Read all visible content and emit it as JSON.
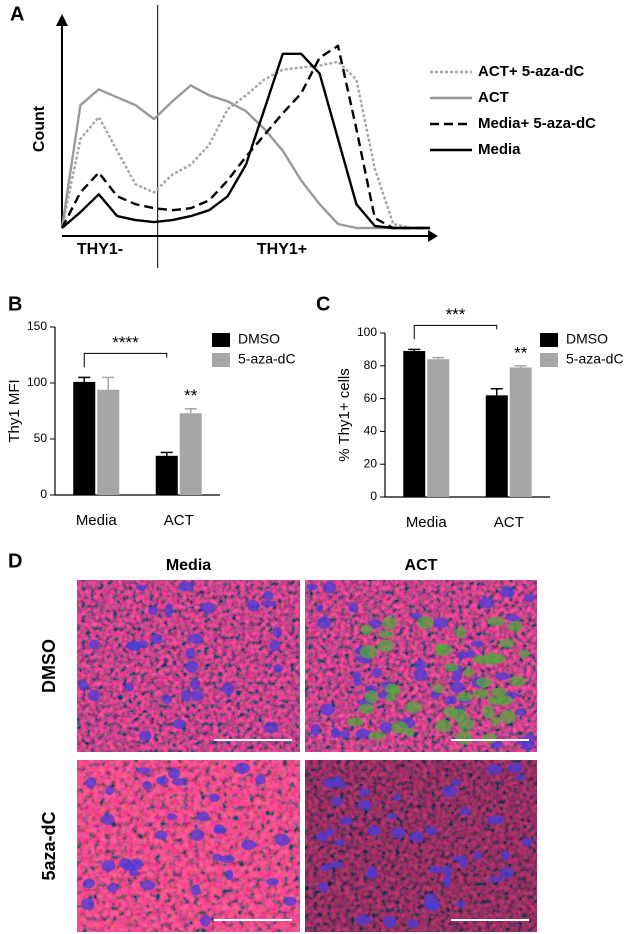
{
  "chart_data": [
    {
      "panel": "A",
      "type": "line",
      "y_label": "Count",
      "annotations": [
        "THY1-",
        "THY1+"
      ],
      "x": [
        0,
        5,
        10,
        15,
        20,
        25,
        30,
        35,
        40,
        45,
        50,
        55,
        60,
        65,
        70,
        75,
        80,
        85,
        90,
        95,
        100
      ],
      "xlim": [
        0,
        100
      ],
      "ylim": [
        0,
        100
      ],
      "gate_x": 26,
      "legend": "right",
      "series": [
        {
          "name": "ACT+ 5-aza-dC",
          "color": "#a6a6a6",
          "dash": "dotted",
          "values": [
            0,
            45,
            56,
            39,
            22,
            18,
            27,
            32,
            42,
            60,
            67,
            75,
            80,
            81,
            82,
            84,
            75,
            30,
            2,
            0,
            0
          ]
        },
        {
          "name": "ACT",
          "color": "#999999",
          "dash": "solid",
          "values": [
            0,
            62,
            70,
            66,
            62,
            55,
            64,
            72,
            67,
            64,
            59,
            50,
            39,
            24,
            12,
            2,
            0,
            0,
            0,
            0,
            0
          ]
        },
        {
          "name": "Media+ 5-aza-dC",
          "color": "#000000",
          "dash": "dashed",
          "values": [
            0,
            18,
            28,
            16,
            12,
            10,
            9,
            10,
            14,
            24,
            36,
            47,
            58,
            68,
            86,
            92,
            50,
            5,
            0,
            0,
            0
          ]
        },
        {
          "name": "Media",
          "color": "#000000",
          "dash": "solid",
          "values": [
            0,
            8,
            17,
            6,
            4,
            3,
            4,
            6,
            9,
            16,
            32,
            60,
            88,
            88,
            78,
            45,
            12,
            1,
            0,
            0,
            0
          ]
        }
      ]
    },
    {
      "panel": "B",
      "type": "bar",
      "y_label": "Thy1 MFI",
      "categories": [
        "Media",
        "ACT"
      ],
      "ylim": [
        0,
        150
      ],
      "yticks": [
        0,
        50,
        100,
        150
      ],
      "legend": "right",
      "significance": {
        "bracket": "****",
        "star": "**"
      },
      "series": [
        {
          "name": "DMSO",
          "color": "#000000",
          "values": [
            101,
            35
          ],
          "errors": [
            4,
            3
          ]
        },
        {
          "name": "5-aza-dC",
          "color": "#a6a6a6",
          "values": [
            94,
            73
          ],
          "errors": [
            11,
            4
          ]
        }
      ]
    },
    {
      "panel": "C",
      "type": "bar",
      "y_label": "% Thy1+ cells",
      "categories": [
        "Media",
        "ACT"
      ],
      "ylim": [
        0,
        100
      ],
      "yticks": [
        0,
        20,
        40,
        60,
        80,
        100
      ],
      "legend": "right",
      "significance": {
        "bracket": "***",
        "star": "**"
      },
      "series": [
        {
          "name": "DMSO",
          "color": "#000000",
          "values": [
            89,
            62
          ],
          "errors": [
            1,
            4
          ]
        },
        {
          "name": "5-aza-dC",
          "color": "#a6a6a6",
          "values": [
            84,
            79
          ],
          "errors": [
            1,
            1
          ]
        }
      ]
    }
  ],
  "microscopy": {
    "panel": "D",
    "columns": [
      "Media",
      "ACT"
    ],
    "rows": [
      "DMSO",
      "5aza-dC"
    ]
  }
}
